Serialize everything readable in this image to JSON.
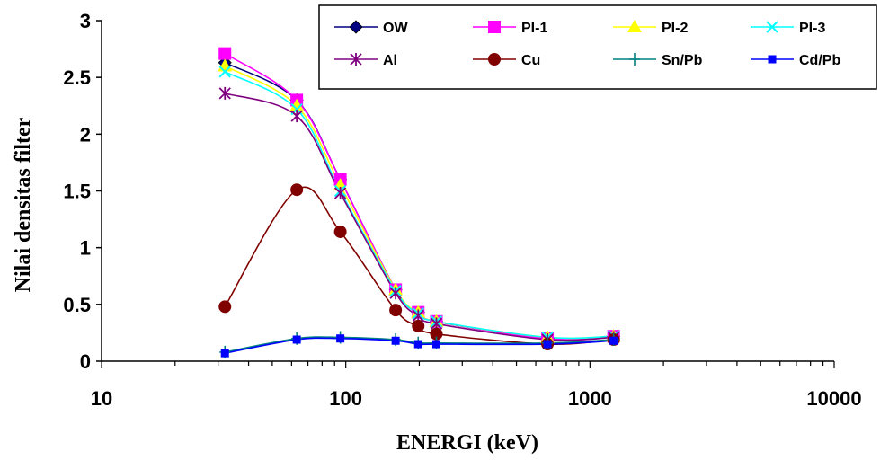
{
  "chart_data": {
    "type": "line",
    "xlabel": "ENERGI (keV)",
    "ylabel": "Nilai densitas filter",
    "xscale": "log",
    "xlim": [
      10,
      10000
    ],
    "ylim": [
      0,
      3
    ],
    "x_ticks": [
      10,
      100,
      1000,
      10000
    ],
    "x_tick_labels": [
      "10",
      "100",
      "1000",
      "10000"
    ],
    "y_ticks": [
      0,
      0.5,
      1,
      1.5,
      2,
      2.5,
      3
    ],
    "y_tick_labels": [
      "0",
      "0.5",
      "1",
      "1.5",
      "2",
      "2.5",
      "3"
    ],
    "grid": false,
    "legend_position": "top-right",
    "series": [
      {
        "name": "OW",
        "color": "#000080",
        "marker": "diamond",
        "x": [
          32,
          63,
          95,
          160,
          198,
          235,
          670,
          1250
        ],
        "y": [
          2.63,
          2.3,
          1.6,
          0.63,
          0.43,
          0.35,
          0.2,
          0.22
        ]
      },
      {
        "name": "PI-1",
        "color": "#ff00ff",
        "marker": "square",
        "x": [
          32,
          63,
          95,
          160,
          198,
          235,
          670,
          1250
        ],
        "y": [
          2.71,
          2.3,
          1.6,
          0.63,
          0.43,
          0.35,
          0.2,
          0.22
        ]
      },
      {
        "name": "PI-2",
        "color": "#ffff00",
        "marker": "triangle",
        "x": [
          32,
          63,
          95,
          160,
          198,
          235,
          670,
          1250
        ],
        "y": [
          2.6,
          2.25,
          1.55,
          0.63,
          0.43,
          0.35,
          0.21,
          0.22
        ]
      },
      {
        "name": "PI-3",
        "color": "#00ffff",
        "marker": "x",
        "x": [
          32,
          63,
          95,
          160,
          198,
          235,
          670,
          1250
        ],
        "y": [
          2.55,
          2.22,
          1.5,
          0.62,
          0.42,
          0.35,
          0.21,
          0.22
        ]
      },
      {
        "name": "Al",
        "color": "#800080",
        "marker": "asterisk",
        "x": [
          32,
          63,
          95,
          160,
          198,
          235,
          670,
          1250
        ],
        "y": [
          2.36,
          2.16,
          1.48,
          0.6,
          0.4,
          0.33,
          0.19,
          0.21
        ]
      },
      {
        "name": "Cu",
        "color": "#800000",
        "marker": "circle",
        "x": [
          32,
          63,
          95,
          160,
          198,
          235,
          670,
          1250
        ],
        "y": [
          0.48,
          1.51,
          1.14,
          0.45,
          0.31,
          0.24,
          0.15,
          0.19
        ]
      },
      {
        "name": "Sn/Pb",
        "color": "#008080",
        "marker": "plus",
        "x": [
          32,
          63,
          95,
          160,
          198,
          235,
          670,
          1250
        ],
        "y": [
          0.08,
          0.2,
          0.21,
          0.19,
          0.16,
          0.16,
          0.16,
          0.19
        ]
      },
      {
        "name": "Cd/Pb",
        "color": "#0000ff",
        "marker": "smallsquare",
        "x": [
          32,
          63,
          95,
          160,
          198,
          235,
          670,
          1250
        ],
        "y": [
          0.07,
          0.19,
          0.2,
          0.18,
          0.15,
          0.15,
          0.15,
          0.18
        ]
      }
    ]
  }
}
